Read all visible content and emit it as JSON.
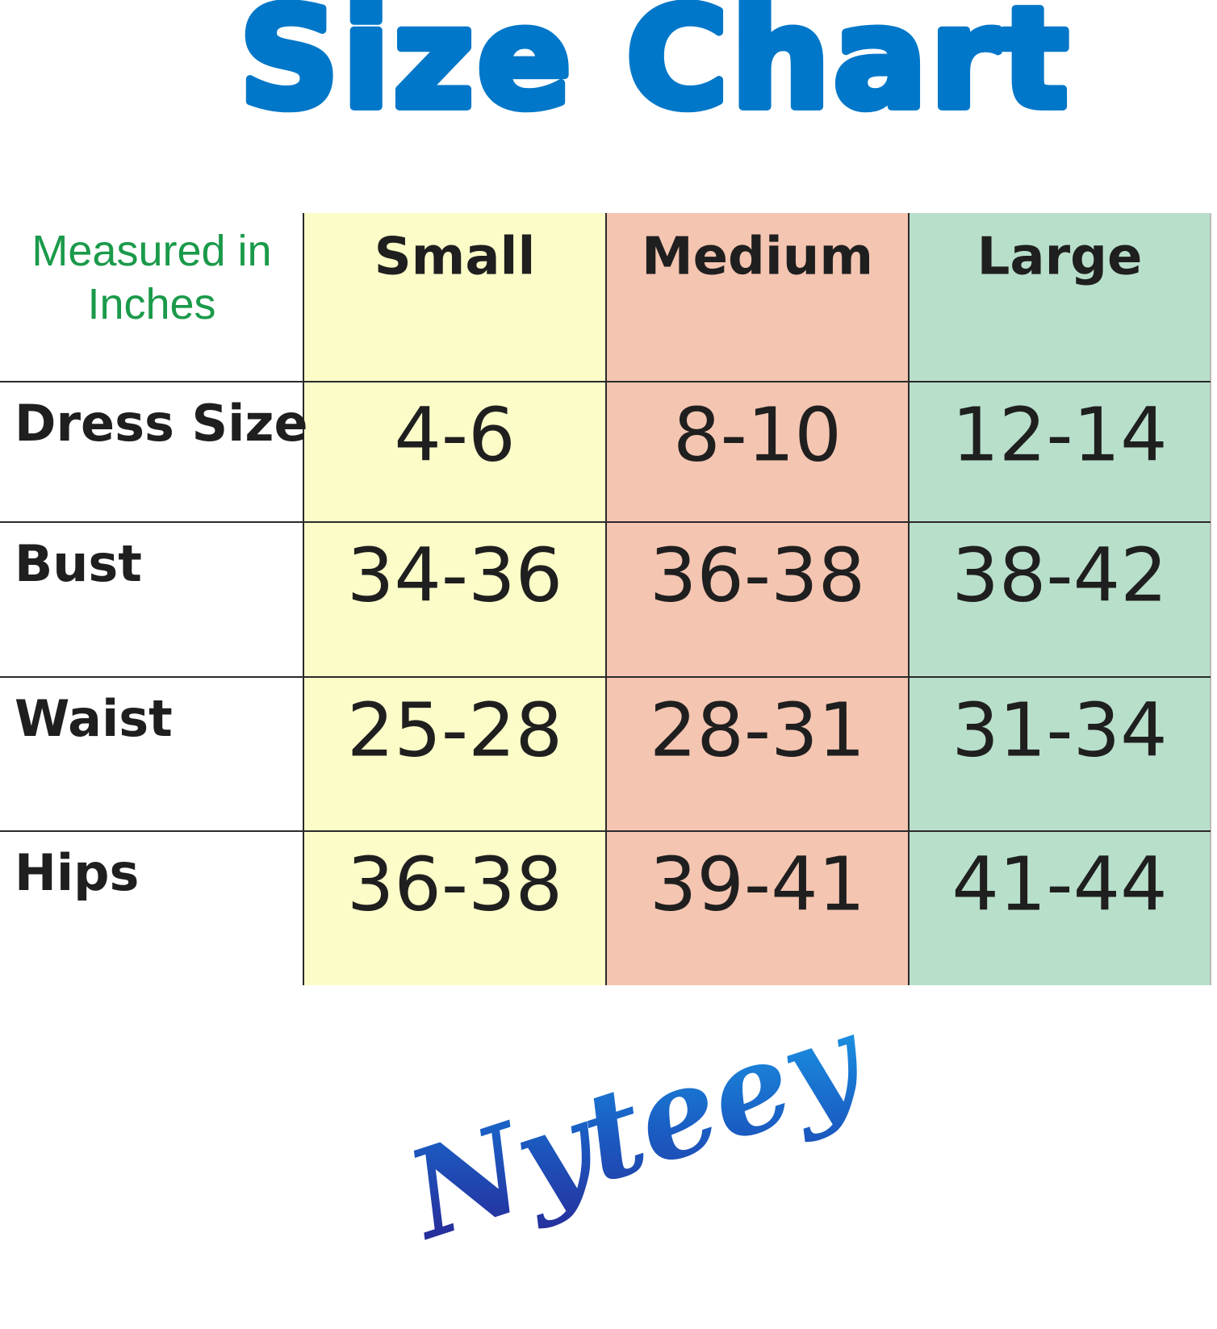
{
  "header": {
    "title": "Size Chart"
  },
  "table": {
    "corner": "Measured in Inches",
    "columns": [
      "Small",
      "Medium",
      "Large"
    ],
    "rows": [
      {
        "label": "Dress Size",
        "values": [
          "4-6",
          "8-10",
          "12-14"
        ]
      },
      {
        "label": "Bust",
        "values": [
          "34-36",
          "36-38",
          "38-42"
        ]
      },
      {
        "label": "Waist",
        "values": [
          "25-28",
          "28-31",
          "31-34"
        ]
      },
      {
        "label": "Hips",
        "values": [
          "36-38",
          "39-41",
          "41-44"
        ]
      }
    ]
  },
  "logo": {
    "text": "Nyteey"
  }
}
